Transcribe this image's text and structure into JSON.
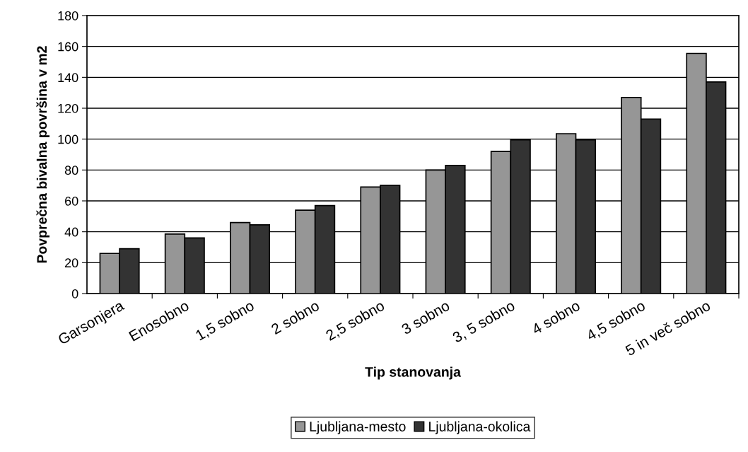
{
  "chart_data": {
    "type": "bar",
    "xlabel": "Tip stanovanja",
    "ylabel": "Povprečna bivalna površina v m2",
    "categories": [
      "Garsonjera",
      "Enosobno",
      "1,5 sobno",
      "2 sobno",
      "2,5 sobno",
      "3 sobno",
      "3, 5 sobno",
      "4 sobno",
      "4,5 sobno",
      "5 in več sobno"
    ],
    "series": [
      {
        "name": "Ljubljana-mesto",
        "color": "#969696",
        "values": [
          26,
          38.5,
          46,
          54,
          69,
          80,
          92,
          103.5,
          127,
          155.5
        ]
      },
      {
        "name": "Ljubljana-okolica",
        "color": "#333333",
        "values": [
          29,
          36,
          44.5,
          57,
          70,
          83,
          99.5,
          99.5,
          113,
          137
        ]
      }
    ],
    "ylim": [
      0,
      180
    ],
    "yticks": [
      0,
      20,
      40,
      60,
      80,
      100,
      120,
      140,
      160,
      180
    ],
    "grid": "y",
    "legend": "bottom"
  }
}
